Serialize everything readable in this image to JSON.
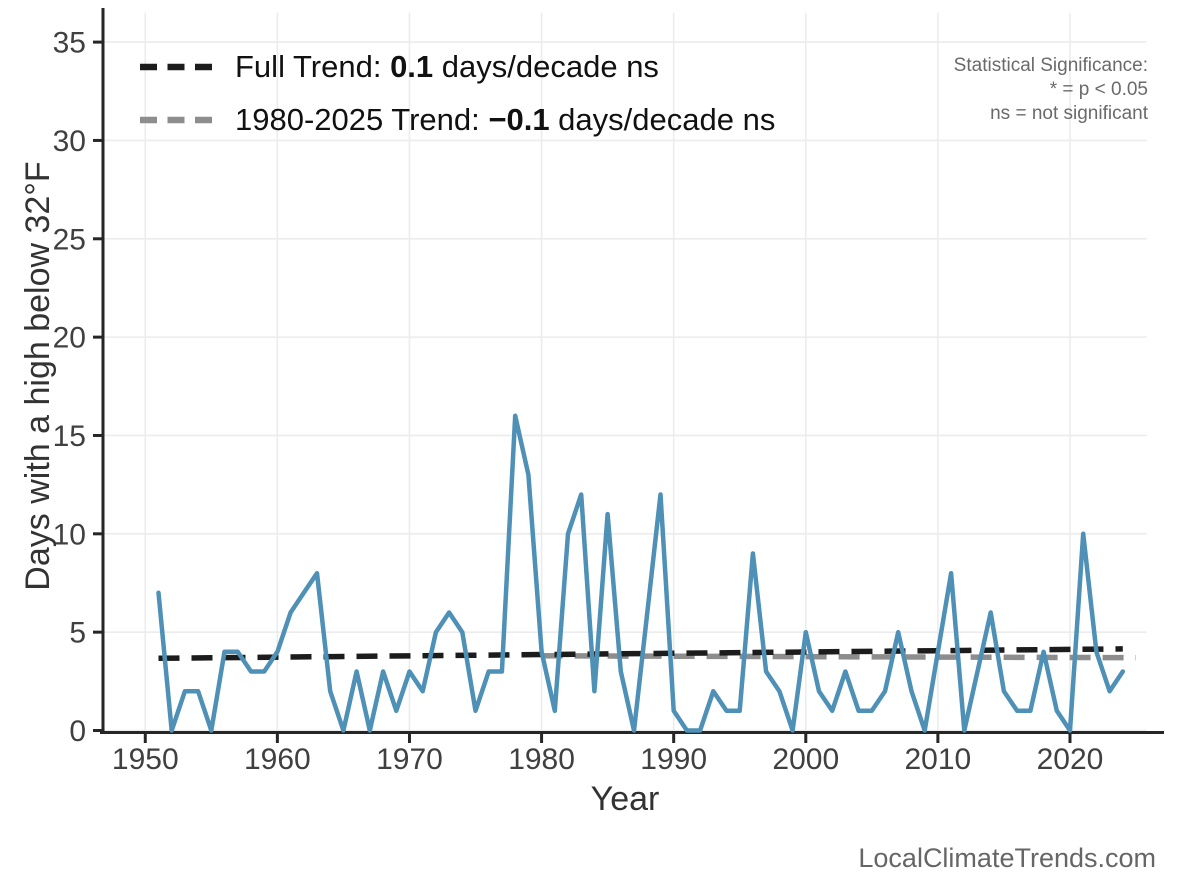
{
  "watermark": "LocalClimateTrends.com",
  "stat_note": {
    "line1": "Statistical Significance:",
    "line2": "* = p < 0.05",
    "line3": "ns = not significant"
  },
  "chart_data": {
    "type": "line",
    "title": "",
    "xlabel": "Year",
    "ylabel": "Days with a high below 32°F",
    "xlim": [
      1946.8,
      2025.8
    ],
    "ylim": [
      0,
      36.5
    ],
    "x_ticks": [
      1950,
      1960,
      1970,
      1980,
      1990,
      2000,
      2010,
      2020
    ],
    "y_ticks": [
      0,
      5,
      10,
      15,
      20,
      25,
      30,
      35
    ],
    "grid": true,
    "legend_position": "top-left",
    "legend": [
      {
        "prefix": "Full Trend: ",
        "value": "0.1",
        "suffix": " days/decade ns",
        "color": "#1C1C1C"
      },
      {
        "prefix": "1980-2025 Trend: ",
        "value": "−0.1",
        "suffix": " days/decade ns",
        "color": "#8D8D8D"
      }
    ],
    "series": [
      {
        "name": "trend-1980-2025",
        "kind": "trend",
        "color": "#8D8D8D",
        "width": 5.5,
        "dashed": true,
        "x": [
          1980,
          2025
        ],
        "values": [
          3.8,
          3.7
        ]
      },
      {
        "name": "full-trend",
        "kind": "trend",
        "color": "#1C1C1C",
        "width": 5.5,
        "dashed": true,
        "x": [
          1951,
          2024
        ],
        "values": [
          3.67,
          4.15
        ]
      },
      {
        "name": "observed-days",
        "kind": "data",
        "color": "#4E90B6",
        "width": 4.5,
        "dashed": false,
        "x": [
          1951,
          1952,
          1953,
          1954,
          1955,
          1956,
          1957,
          1958,
          1959,
          1960,
          1961,
          1962,
          1963,
          1964,
          1965,
          1966,
          1967,
          1968,
          1969,
          1970,
          1971,
          1972,
          1973,
          1974,
          1975,
          1976,
          1977,
          1978,
          1979,
          1980,
          1981,
          1982,
          1983,
          1984,
          1985,
          1986,
          1987,
          1988,
          1989,
          1990,
          1991,
          1992,
          1993,
          1994,
          1995,
          1996,
          1997,
          1998,
          1999,
          2000,
          2001,
          2002,
          2003,
          2004,
          2005,
          2006,
          2007,
          2008,
          2009,
          2010,
          2011,
          2012,
          2013,
          2014,
          2015,
          2016,
          2017,
          2018,
          2019,
          2020,
          2021,
          2022,
          2023,
          2024
        ],
        "values": [
          7,
          0,
          2,
          2,
          0,
          4,
          4,
          3,
          3,
          4,
          6,
          7,
          8,
          2,
          0,
          3,
          0,
          3,
          1,
          3,
          2,
          5,
          6,
          5,
          1,
          3,
          3,
          16,
          13,
          4,
          1,
          10,
          12,
          2,
          11,
          3,
          0,
          6,
          12,
          1,
          0,
          0,
          2,
          1,
          1,
          9,
          3,
          2,
          0,
          5,
          2,
          1,
          3,
          1,
          1,
          2,
          5,
          2,
          0,
          4,
          8,
          0,
          3,
          6,
          2,
          1,
          1,
          4,
          1,
          0,
          10,
          4,
          2,
          3
        ]
      }
    ]
  }
}
